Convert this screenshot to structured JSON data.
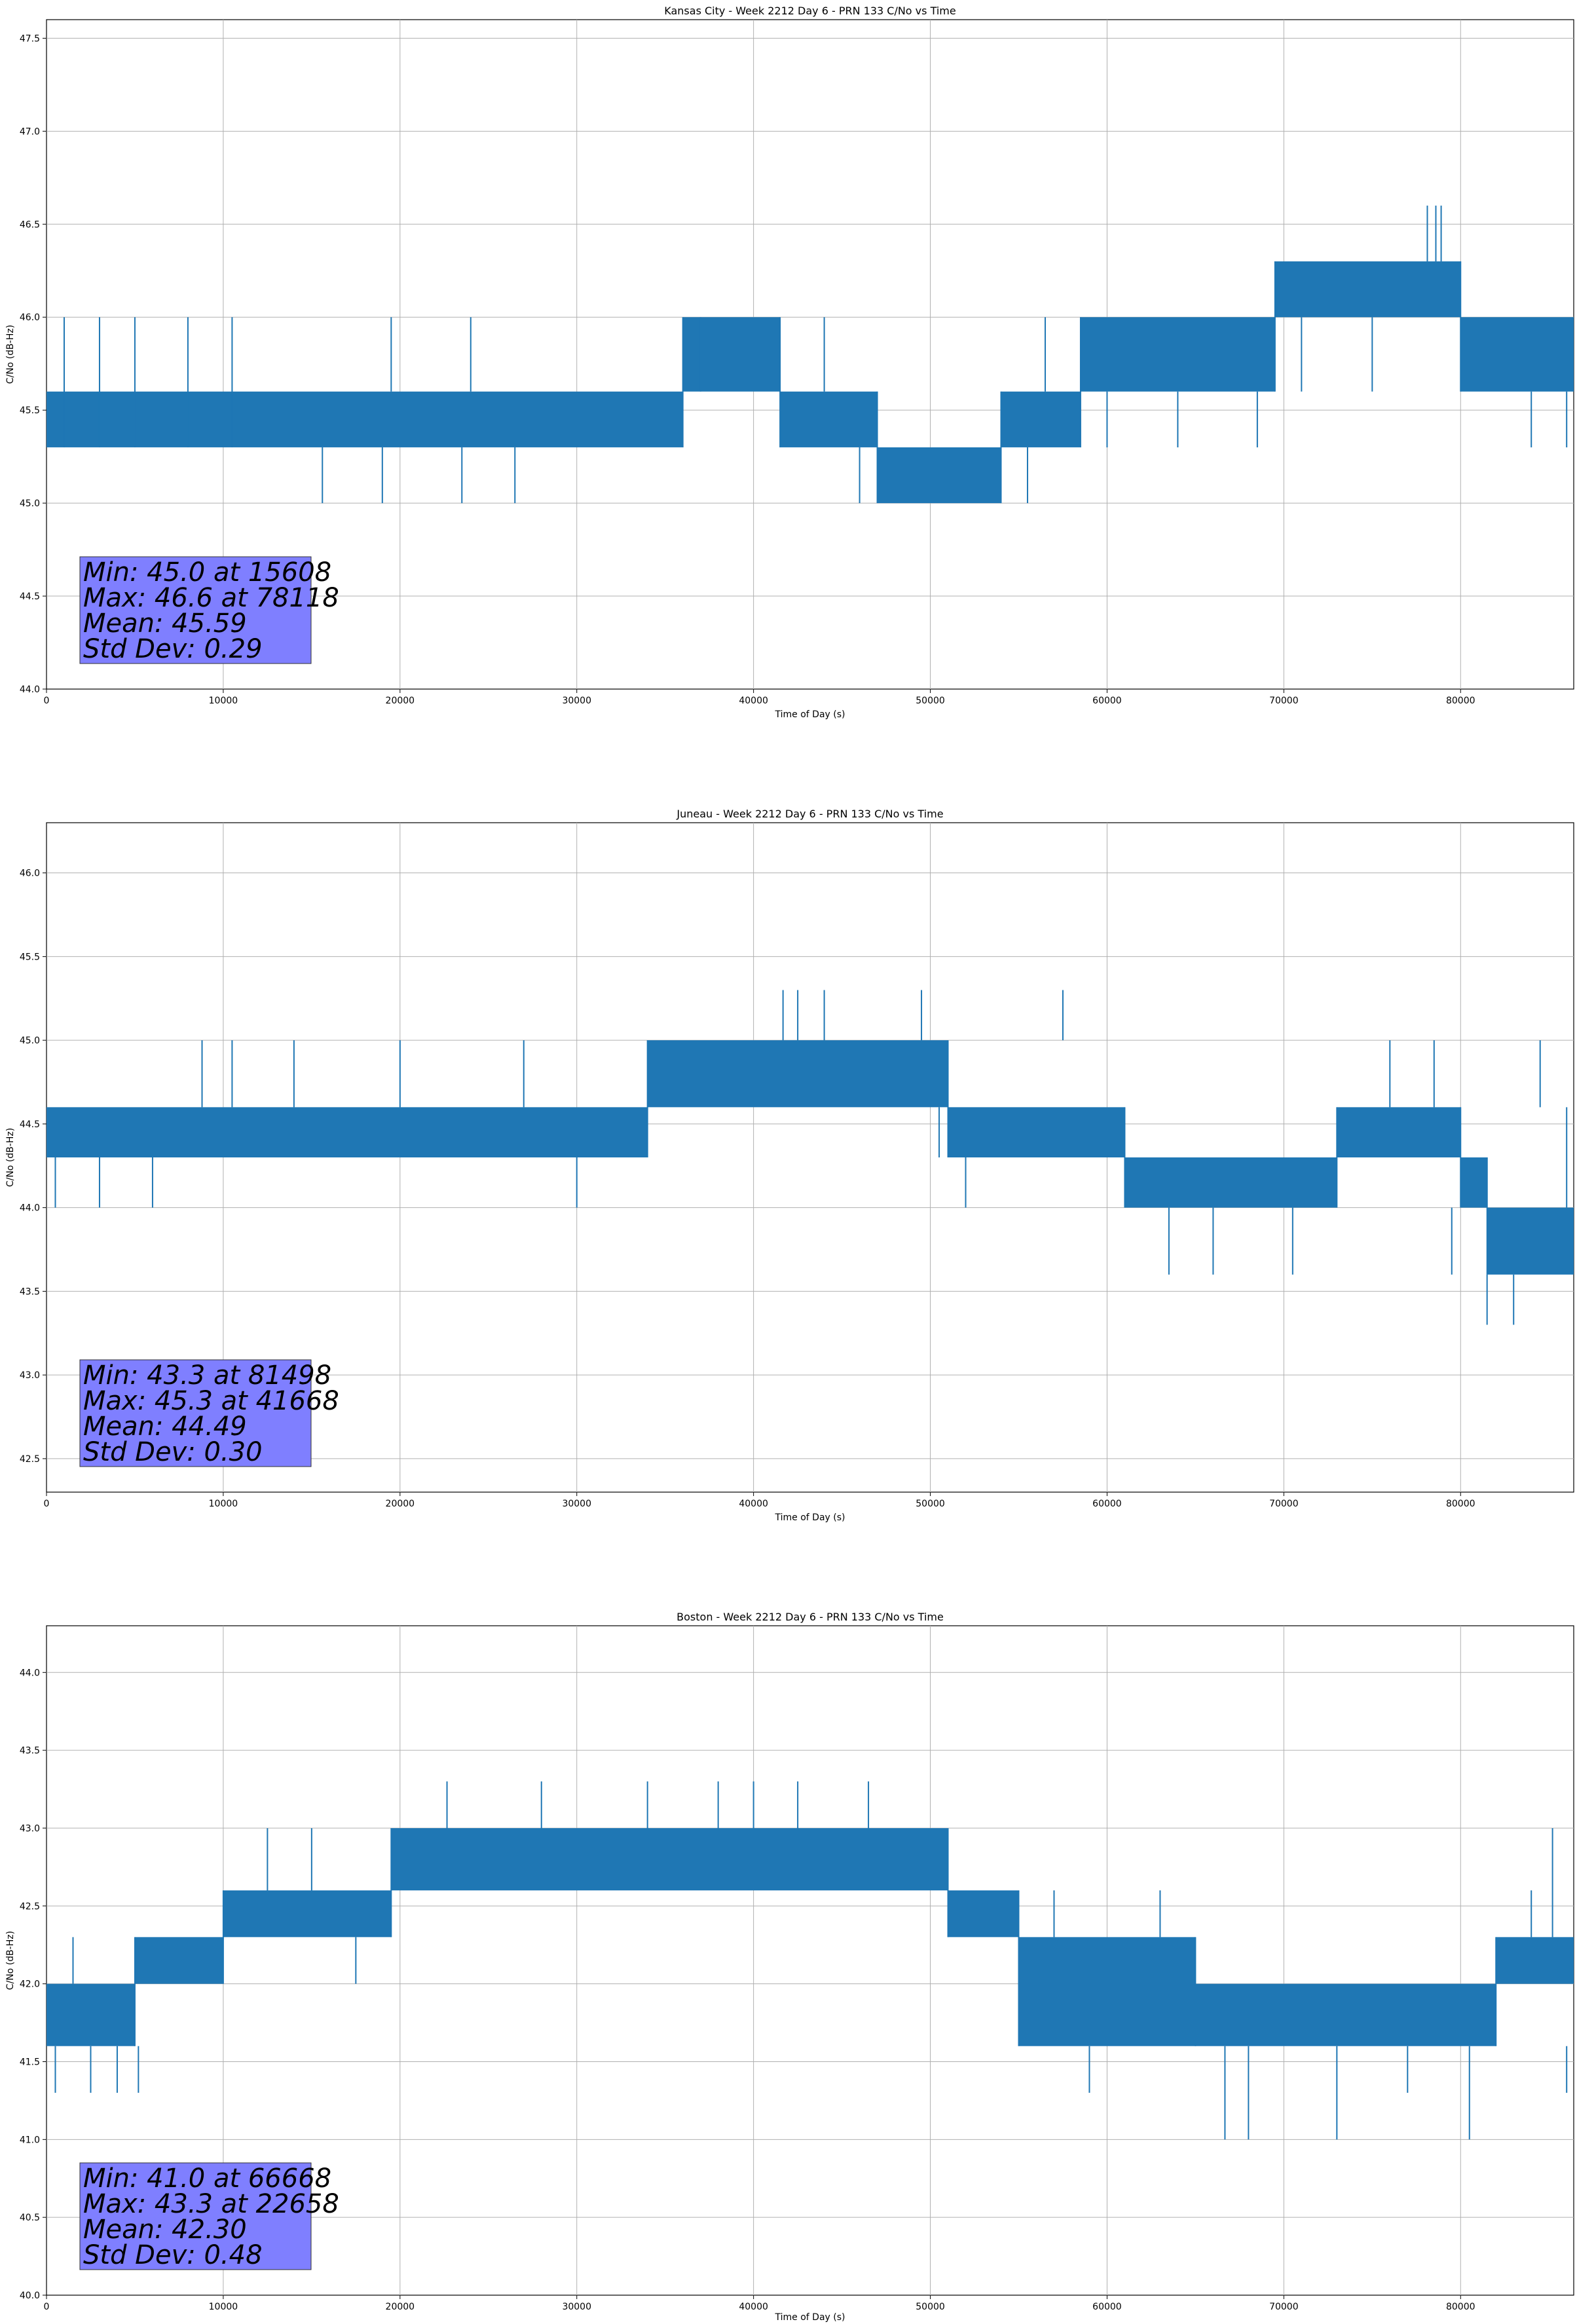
{
  "chart_data": [
    {
      "type": "line",
      "title": "Kansas City - Week 2212 Day 6 - PRN 133 C/No vs Time",
      "xlabel": "Time of Day (s)",
      "ylabel": "C/No (dB-Hz)",
      "xlim": [
        0,
        86400
      ],
      "ylim": [
        44.0,
        47.6
      ],
      "x_ticks": [
        0,
        10000,
        20000,
        30000,
        40000,
        50000,
        60000,
        70000,
        80000
      ],
      "y_ticks": [
        "44.0",
        "44.5",
        "45.0",
        "45.5",
        "46.0",
        "46.5",
        "47.0",
        "47.5"
      ],
      "grid": true,
      "series_color": "#1f77b4",
      "band_segments": [
        {
          "x0": 0,
          "x1": 36000,
          "lo": 45.3,
          "hi": 45.6
        },
        {
          "x0": 36000,
          "x1": 41500,
          "lo": 45.6,
          "hi": 46.0
        },
        {
          "x0": 41500,
          "x1": 47000,
          "lo": 45.3,
          "hi": 45.6
        },
        {
          "x0": 47000,
          "x1": 54000,
          "lo": 45.0,
          "hi": 45.3
        },
        {
          "x0": 54000,
          "x1": 58500,
          "lo": 45.3,
          "hi": 45.6
        },
        {
          "x0": 58500,
          "x1": 69500,
          "lo": 45.6,
          "hi": 46.0
        },
        {
          "x0": 69500,
          "x1": 80000,
          "lo": 46.0,
          "hi": 46.3
        },
        {
          "x0": 80000,
          "x1": 86400,
          "lo": 45.6,
          "hi": 46.0
        }
      ],
      "spikes": [
        {
          "x": 1000,
          "y0": 45.3,
          "y1": 46.0
        },
        {
          "x": 3000,
          "y0": 45.3,
          "y1": 46.0
        },
        {
          "x": 5000,
          "y0": 45.3,
          "y1": 46.0
        },
        {
          "x": 8000,
          "y0": 45.3,
          "y1": 46.0
        },
        {
          "x": 10500,
          "y0": 45.3,
          "y1": 46.0
        },
        {
          "x": 15608,
          "y0": 45.3,
          "y1": 45.0
        },
        {
          "x": 19000,
          "y0": 45.3,
          "y1": 45.0
        },
        {
          "x": 19500,
          "y0": 45.6,
          "y1": 46.0
        },
        {
          "x": 23500,
          "y0": 45.3,
          "y1": 45.0
        },
        {
          "x": 24000,
          "y0": 45.6,
          "y1": 46.0
        },
        {
          "x": 26500,
          "y0": 45.3,
          "y1": 45.0
        },
        {
          "x": 37000,
          "y0": 45.6,
          "y1": 46.0
        },
        {
          "x": 44000,
          "y0": 45.6,
          "y1": 46.0
        },
        {
          "x": 46000,
          "y0": 45.3,
          "y1": 45.0
        },
        {
          "x": 55500,
          "y0": 45.3,
          "y1": 45.0
        },
        {
          "x": 56500,
          "y0": 45.6,
          "y1": 46.0
        },
        {
          "x": 60000,
          "y0": 45.6,
          "y1": 45.3
        },
        {
          "x": 64000,
          "y0": 45.6,
          "y1": 45.3
        },
        {
          "x": 68500,
          "y0": 45.6,
          "y1": 45.3
        },
        {
          "x": 71000,
          "y0": 46.0,
          "y1": 45.6
        },
        {
          "x": 75000,
          "y0": 46.0,
          "y1": 45.6
        },
        {
          "x": 78118,
          "y0": 46.3,
          "y1": 46.6
        },
        {
          "x": 78600,
          "y0": 46.3,
          "y1": 46.6
        },
        {
          "x": 78900,
          "y0": 46.3,
          "y1": 46.6
        },
        {
          "x": 84000,
          "y0": 45.6,
          "y1": 45.3
        },
        {
          "x": 86000,
          "y0": 45.6,
          "y1": 45.3
        }
      ],
      "stats": {
        "line1": "Min: 45.0 at 15608",
        "line2": "Max: 46.6 at 78118",
        "line3": "Mean: 45.59",
        "line4": "Std Dev: 0.29"
      }
    },
    {
      "type": "line",
      "title": "Juneau - Week 2212 Day 6 - PRN 133 C/No vs Time",
      "xlabel": "Time of Day (s)",
      "ylabel": "C/No (dB-Hz)",
      "xlim": [
        0,
        86400
      ],
      "ylim": [
        42.3,
        46.3
      ],
      "x_ticks": [
        0,
        10000,
        20000,
        30000,
        40000,
        50000,
        60000,
        70000,
        80000
      ],
      "y_ticks": [
        "42.5",
        "43.0",
        "43.5",
        "44.0",
        "44.5",
        "45.0",
        "45.5",
        "46.0"
      ],
      "grid": true,
      "series_color": "#1f77b4",
      "band_segments": [
        {
          "x0": 0,
          "x1": 34000,
          "lo": 44.3,
          "hi": 44.6
        },
        {
          "x0": 34000,
          "x1": 51000,
          "lo": 44.6,
          "hi": 45.0
        },
        {
          "x0": 51000,
          "x1": 61000,
          "lo": 44.3,
          "hi": 44.6
        },
        {
          "x0": 61000,
          "x1": 73000,
          "lo": 44.0,
          "hi": 44.3
        },
        {
          "x0": 73000,
          "x1": 80000,
          "lo": 44.3,
          "hi": 44.6
        },
        {
          "x0": 80000,
          "x1": 81500,
          "lo": 44.0,
          "hi": 44.3
        },
        {
          "x0": 81500,
          "x1": 86400,
          "lo": 43.6,
          "hi": 44.0
        }
      ],
      "spikes": [
        {
          "x": 500,
          "y0": 44.3,
          "y1": 44.0
        },
        {
          "x": 3000,
          "y0": 44.3,
          "y1": 44.0
        },
        {
          "x": 6000,
          "y0": 44.3,
          "y1": 44.0
        },
        {
          "x": 8800,
          "y0": 44.6,
          "y1": 45.0
        },
        {
          "x": 10500,
          "y0": 44.6,
          "y1": 45.0
        },
        {
          "x": 14000,
          "y0": 44.6,
          "y1": 45.0
        },
        {
          "x": 20000,
          "y0": 44.6,
          "y1": 45.0
        },
        {
          "x": 27000,
          "y0": 44.6,
          "y1": 45.0
        },
        {
          "x": 30000,
          "y0": 44.3,
          "y1": 44.0
        },
        {
          "x": 41668,
          "y0": 45.0,
          "y1": 45.3
        },
        {
          "x": 42500,
          "y0": 45.0,
          "y1": 45.3
        },
        {
          "x": 44000,
          "y0": 45.0,
          "y1": 45.3
        },
        {
          "x": 49500,
          "y0": 45.0,
          "y1": 45.3
        },
        {
          "x": 57500,
          "y0": 45.0,
          "y1": 45.3
        },
        {
          "x": 50500,
          "y0": 44.6,
          "y1": 44.3
        },
        {
          "x": 52000,
          "y0": 44.3,
          "y1": 44.0
        },
        {
          "x": 63500,
          "y0": 44.0,
          "y1": 43.6
        },
        {
          "x": 66000,
          "y0": 44.0,
          "y1": 43.6
        },
        {
          "x": 70500,
          "y0": 44.0,
          "y1": 43.6
        },
        {
          "x": 76000,
          "y0": 44.6,
          "y1": 45.0
        },
        {
          "x": 78500,
          "y0": 44.6,
          "y1": 45.0
        },
        {
          "x": 79500,
          "y0": 44.0,
          "y1": 43.6
        },
        {
          "x": 81498,
          "y0": 43.6,
          "y1": 43.3
        },
        {
          "x": 83000,
          "y0": 43.6,
          "y1": 43.3
        },
        {
          "x": 84500,
          "y0": 44.6,
          "y1": 45.0
        },
        {
          "x": 86000,
          "y0": 44.0,
          "y1": 44.6
        }
      ],
      "stats": {
        "line1": "Min: 43.3 at 81498",
        "line2": "Max: 45.3 at 41668",
        "line3": "Mean: 44.49",
        "line4": "Std Dev: 0.30"
      }
    },
    {
      "type": "line",
      "title": "Boston - Week 2212 Day 6 - PRN 133 C/No vs Time",
      "xlabel": "Time of Day (s)",
      "ylabel": "C/No (dB-Hz)",
      "xlim": [
        0,
        86400
      ],
      "ylim": [
        40.0,
        44.3
      ],
      "x_ticks": [
        0,
        10000,
        20000,
        30000,
        40000,
        50000,
        60000,
        70000,
        80000
      ],
      "y_ticks": [
        "40.0",
        "40.5",
        "41.0",
        "41.5",
        "42.0",
        "42.5",
        "43.0",
        "43.5",
        "44.0"
      ],
      "grid": true,
      "series_color": "#1f77b4",
      "band_segments": [
        {
          "x0": 0,
          "x1": 5000,
          "lo": 41.6,
          "hi": 42.0
        },
        {
          "x0": 5000,
          "x1": 10000,
          "lo": 42.0,
          "hi": 42.3
        },
        {
          "x0": 10000,
          "x1": 19500,
          "lo": 42.3,
          "hi": 42.6
        },
        {
          "x0": 19500,
          "x1": 51000,
          "lo": 42.6,
          "hi": 43.0
        },
        {
          "x0": 51000,
          "x1": 55000,
          "lo": 42.3,
          "hi": 42.6
        },
        {
          "x0": 55000,
          "x1": 65000,
          "lo": 41.6,
          "hi": 42.3
        },
        {
          "x0": 65000,
          "x1": 82000,
          "lo": 41.6,
          "hi": 42.0
        },
        {
          "x0": 82000,
          "x1": 86400,
          "lo": 42.0,
          "hi": 42.3
        }
      ],
      "spikes": [
        {
          "x": 500,
          "y0": 41.6,
          "y1": 41.3
        },
        {
          "x": 1500,
          "y0": 42.0,
          "y1": 42.3
        },
        {
          "x": 2500,
          "y0": 41.6,
          "y1": 41.3
        },
        {
          "x": 4000,
          "y0": 41.6,
          "y1": 41.3
        },
        {
          "x": 5200,
          "y0": 41.6,
          "y1": 41.3
        },
        {
          "x": 12500,
          "y0": 42.6,
          "y1": 43.0
        },
        {
          "x": 15000,
          "y0": 42.6,
          "y1": 43.0
        },
        {
          "x": 17500,
          "y0": 42.3,
          "y1": 42.0
        },
        {
          "x": 22658,
          "y0": 43.0,
          "y1": 43.3
        },
        {
          "x": 28000,
          "y0": 43.0,
          "y1": 43.3
        },
        {
          "x": 34000,
          "y0": 43.0,
          "y1": 43.3
        },
        {
          "x": 38000,
          "y0": 43.0,
          "y1": 43.3
        },
        {
          "x": 40000,
          "y0": 43.0,
          "y1": 43.3
        },
        {
          "x": 42500,
          "y0": 43.0,
          "y1": 43.3
        },
        {
          "x": 46500,
          "y0": 43.0,
          "y1": 43.3
        },
        {
          "x": 57000,
          "y0": 42.3,
          "y1": 42.6
        },
        {
          "x": 59000,
          "y0": 41.6,
          "y1": 41.3
        },
        {
          "x": 63000,
          "y0": 42.3,
          "y1": 42.6
        },
        {
          "x": 66668,
          "y0": 41.6,
          "y1": 41.0
        },
        {
          "x": 68000,
          "y0": 41.6,
          "y1": 41.0
        },
        {
          "x": 73000,
          "y0": 41.6,
          "y1": 41.0
        },
        {
          "x": 77000,
          "y0": 41.6,
          "y1": 41.3
        },
        {
          "x": 80500,
          "y0": 41.6,
          "y1": 41.0
        },
        {
          "x": 85200,
          "y0": 42.3,
          "y1": 43.0
        },
        {
          "x": 84000,
          "y0": 42.3,
          "y1": 42.6
        },
        {
          "x": 86000,
          "y0": 41.6,
          "y1": 41.3
        }
      ],
      "stats": {
        "line1": "Min: 41.0 at 66668",
        "line2": "Max: 43.3 at 22658",
        "line3": "Mean: 42.30",
        "line4": "Std Dev: 0.48"
      }
    }
  ]
}
